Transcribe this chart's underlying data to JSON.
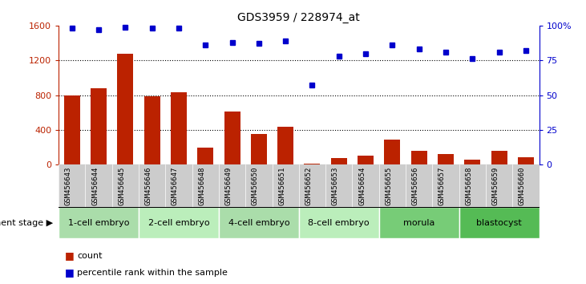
{
  "title": "GDS3959 / 228974_at",
  "samples": [
    "GSM456643",
    "GSM456644",
    "GSM456645",
    "GSM456646",
    "GSM456647",
    "GSM456648",
    "GSM456649",
    "GSM456650",
    "GSM456651",
    "GSM456652",
    "GSM456653",
    "GSM456654",
    "GSM456655",
    "GSM456656",
    "GSM456657",
    "GSM456658",
    "GSM456659",
    "GSM456660"
  ],
  "counts": [
    800,
    880,
    1280,
    790,
    830,
    200,
    610,
    350,
    440,
    15,
    80,
    100,
    290,
    160,
    120,
    60,
    160,
    90
  ],
  "percentiles": [
    98,
    97,
    99,
    98,
    98,
    86,
    88,
    87,
    89,
    57,
    78,
    80,
    86,
    83,
    81,
    76,
    81,
    82
  ],
  "ylim_left": [
    0,
    1600
  ],
  "ylim_right": [
    0,
    100
  ],
  "yticks_left": [
    0,
    400,
    800,
    1200,
    1600
  ],
  "yticks_right": [
    0,
    25,
    50,
    75,
    100
  ],
  "bar_color": "#BB2200",
  "dot_color": "#0000CC",
  "stages": [
    {
      "label": "1-cell embryo",
      "start": 0,
      "end": 3
    },
    {
      "label": "2-cell embryo",
      "start": 3,
      "end": 6
    },
    {
      "label": "4-cell embryo",
      "start": 6,
      "end": 9
    },
    {
      "label": "8-cell embryo",
      "start": 9,
      "end": 12
    },
    {
      "label": "morula",
      "start": 12,
      "end": 15
    },
    {
      "label": "blastocyst",
      "start": 15,
      "end": 18
    }
  ],
  "stage_colors": [
    "#AADDAA",
    "#BBEEBB",
    "#AADDAA",
    "#BBEEBB",
    "#77CC77",
    "#55BB55"
  ],
  "xlabel_stage": "development stage",
  "legend_count_label": "count",
  "legend_pct_label": "percentile rank within the sample",
  "tick_label_bg": "#CCCCCC"
}
